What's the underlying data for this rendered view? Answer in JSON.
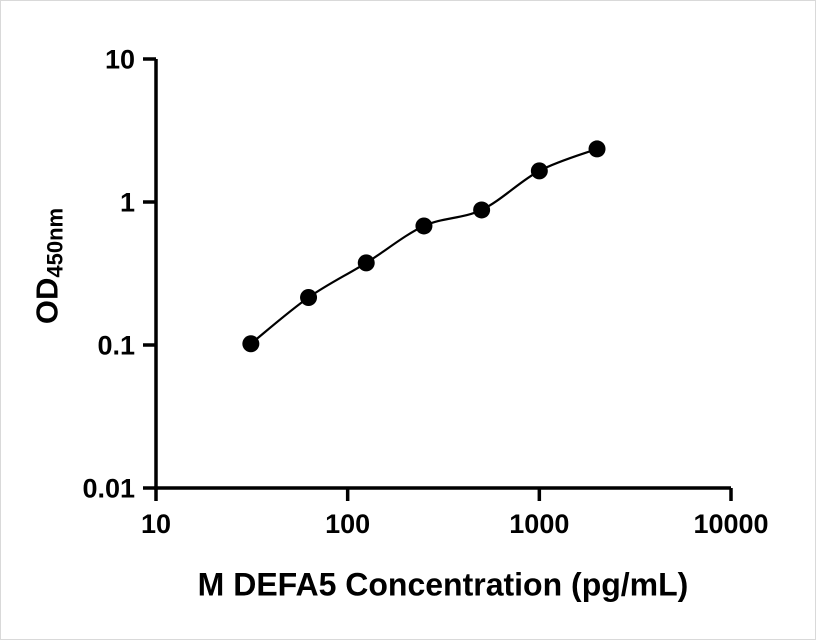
{
  "figure": {
    "background": "#ffffff",
    "border_color": "#d9d9d9"
  },
  "chart_data": {
    "type": "scatter",
    "title": "",
    "xlabel": "M DEFA5 Concentration (pg/mL)",
    "ylabel": "OD",
    "ylabel_sub": "450nm",
    "xscale": "log",
    "yscale": "log",
    "xlim": [
      10,
      10000
    ],
    "ylim": [
      0.01,
      10
    ],
    "x": [
      31.25,
      62.5,
      125,
      250,
      500,
      1000,
      2000
    ],
    "y": [
      0.102,
      0.215,
      0.375,
      0.68,
      0.88,
      1.65,
      2.35
    ],
    "x_ticks": [
      10,
      100,
      1000,
      10000
    ],
    "x_tick_labels": [
      "10",
      "100",
      "1000",
      "10000"
    ],
    "y_ticks": [
      0.01,
      0.1,
      1,
      10
    ],
    "y_tick_labels": [
      "0.01",
      "0.1",
      "1",
      "10"
    ],
    "grid": false,
    "legend": null,
    "marker_color": "#000000",
    "line_color": "#000000",
    "axis_color": "#000000",
    "fit": "smooth curve through standards (4PL-style standard curve)"
  }
}
